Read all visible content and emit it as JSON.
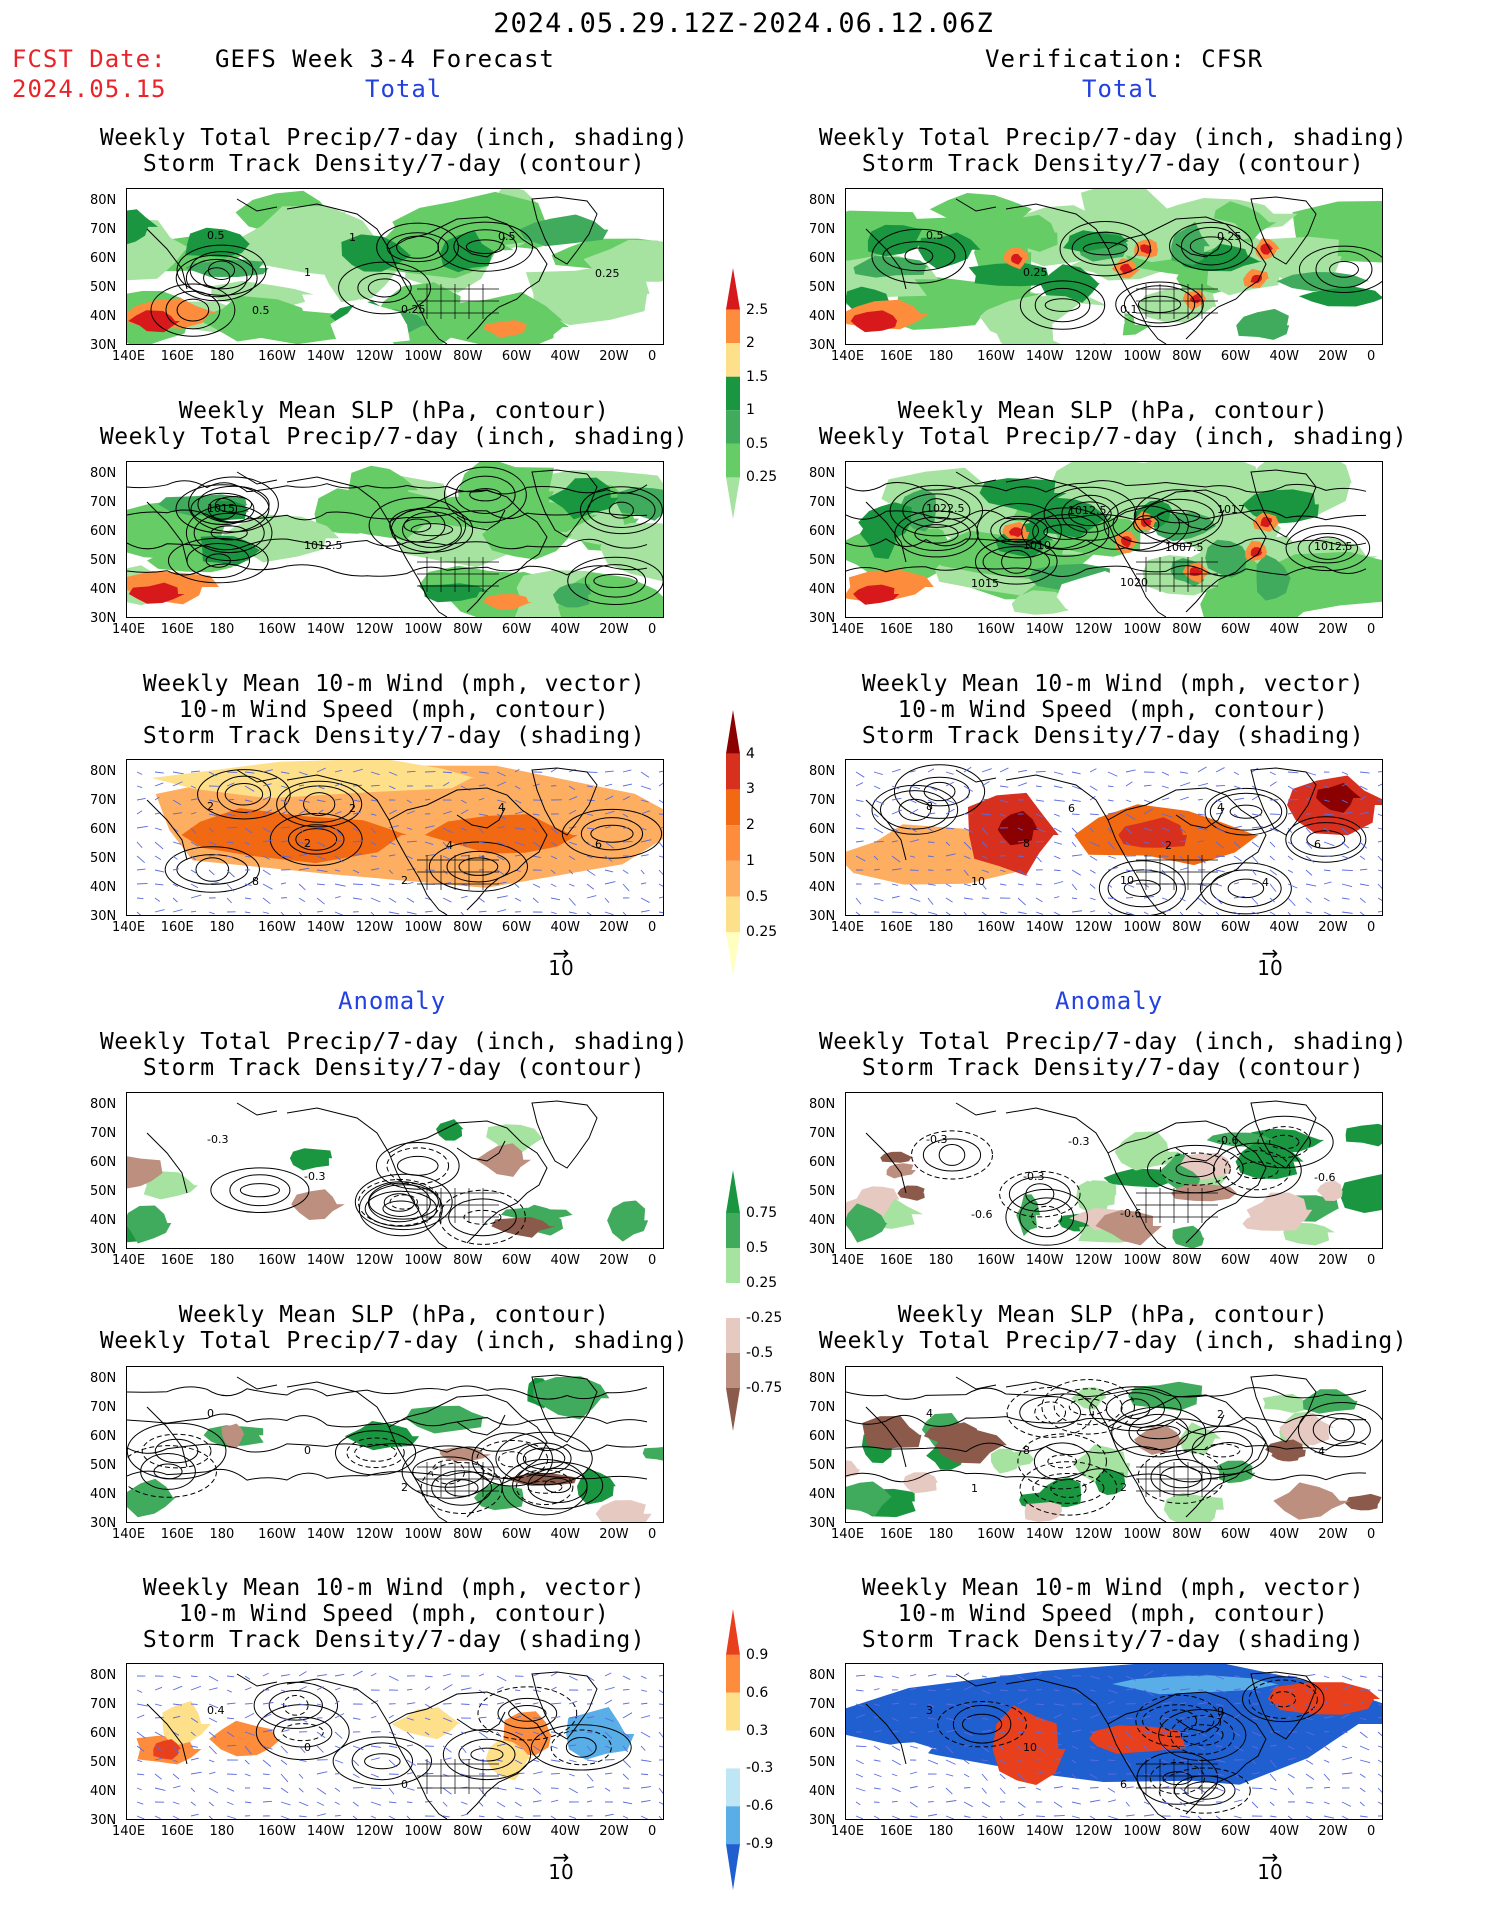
{
  "header": {
    "date_range": "2024.05.29.12Z-2024.06.12.06Z",
    "fcst_label": "FCST Date:",
    "fcst_date": "2024.05.15",
    "left_title": "GEFS Week 3-4 Forecast",
    "right_title": "Verification: CFSR",
    "total_label": "Total",
    "anomaly_label": "Anomaly"
  },
  "panel_titles": {
    "precip_storm": [
      "Weekly Total Precip/7-day (inch, shading)",
      "Storm Track Density/7-day (contour)"
    ],
    "slp_precip": [
      "Weekly Mean SLP (hPa, contour)",
      "Weekly Total Precip/7-day (inch, shading)"
    ],
    "wind_storm": [
      "Weekly Mean 10-m Wind (mph, vector)",
      "10-m Wind Speed (mph, contour)",
      "Storm Track Density/7-day (shading)"
    ]
  },
  "axes": {
    "lat_labels": [
      "80N",
      "70N",
      "60N",
      "50N",
      "40N",
      "30N"
    ],
    "lon_labels": [
      "140E",
      "160E",
      "180",
      "160W",
      "140W",
      "120W",
      "100W",
      "80W",
      "60W",
      "40W",
      "20W",
      "0"
    ]
  },
  "colorbars": {
    "precip_total": {
      "labels": [
        "2.5",
        "2",
        "1.5",
        "1",
        "0.5",
        "0.25"
      ],
      "colors": [
        "#d7191c",
        "#fd8d3c",
        "#fee08b",
        "#1a9641",
        "#41ab5d",
        "#66cc66",
        "#a6e3a0"
      ]
    },
    "storm_total": {
      "labels": [
        "4",
        "3",
        "2",
        "1",
        "0.5",
        "0.25"
      ],
      "colors": [
        "#8b0000",
        "#d7301f",
        "#f16913",
        "#fd8d3c",
        "#fdae61",
        "#fee08b",
        "#ffffbf"
      ]
    },
    "precip_anom": {
      "labels": [
        "0.75",
        "0.5",
        "0.25",
        "-0.25",
        "-0.5",
        "-0.75"
      ],
      "colors": [
        "#1a9641",
        "#41ab5d",
        "#a6e3a0",
        "#ffffff",
        "#e6c9c0",
        "#bc8f7f",
        "#8c5a4a"
      ]
    },
    "storm_anom": {
      "labels": [
        "0.9",
        "0.6",
        "0.3",
        "-0.3",
        "-0.6",
        "-0.9"
      ],
      "colors": [
        "#e8401c",
        "#fd8d3c",
        "#fee08b",
        "#ffffff",
        "#bfe6f5",
        "#5aaee8",
        "#1f5fd0"
      ]
    }
  },
  "vector_ref": {
    "arrow": "→",
    "value": "10"
  },
  "contour_labels": {
    "t1_left": [
      "0.5",
      "1",
      "0.25",
      "0.5",
      "0.25",
      "0.5",
      "1"
    ],
    "t1_right": [
      "0.5",
      "0.25",
      "0.1",
      "0.25"
    ],
    "t2_left": [
      "1015",
      "1012.5"
    ],
    "t2_right": [
      "1022.5",
      "1010",
      "1020",
      "1017",
      "1012.5",
      "1015",
      "1012.5",
      "1007.5"
    ],
    "t3_left": [
      "2",
      "2",
      "2",
      "4",
      "6",
      "8",
      "2",
      "4"
    ],
    "t3_right": [
      "8",
      "8",
      "10",
      "4",
      "6",
      "10",
      "6",
      "2",
      "4"
    ],
    "a1_left": [
      "-0.3",
      "-0.3"
    ],
    "a1_right": [
      "-0.3",
      "-0.3",
      "-0.6",
      "-0.6",
      "-0.6",
      "-0.6",
      "-0.3"
    ],
    "a2_left": [
      "0",
      "0",
      "2"
    ],
    "a2_right": [
      "4",
      "8",
      "2",
      "2",
      "-4",
      "1"
    ],
    "a3_left": [
      "0.4",
      "0",
      "0"
    ],
    "a3_right": [
      "3",
      "10",
      "6",
      "9"
    ]
  }
}
